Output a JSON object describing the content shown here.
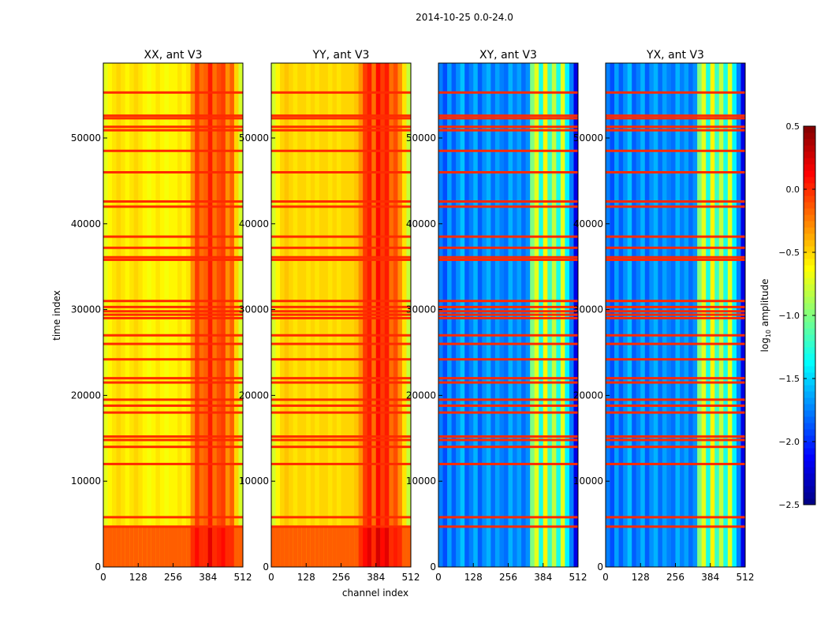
{
  "chart_data": {
    "type": "heatmap",
    "title": "2014-10-25 0.0-24.0",
    "xlabel": "channel index",
    "ylabel": "time index",
    "xlim": [
      0,
      512
    ],
    "ylim": [
      0,
      58730
    ],
    "xticks": [
      "0",
      "128",
      "256",
      "384",
      "512"
    ],
    "xtick_values": [
      0,
      128,
      256,
      384,
      512
    ],
    "yticks": [
      "0",
      "10000",
      "20000",
      "30000",
      "40000",
      "50000"
    ],
    "ytick_values": [
      0,
      10000,
      20000,
      30000,
      40000,
      50000
    ],
    "flagged_times": [
      55300,
      52600,
      52300,
      51300,
      50900,
      48500,
      46000,
      42600,
      42000,
      38500,
      37200,
      36100,
      35800,
      31000,
      30300,
      29800,
      29400,
      29000,
      27000,
      26000,
      24200,
      22000,
      21500,
      19500,
      18800,
      18000,
      15200,
      14800,
      14000,
      12000,
      5800,
      4700
    ],
    "flag_value": 0.0,
    "panels": [
      {
        "title": "XX, ant V3",
        "low_band": [
          0,
          4700
        ],
        "low_band_value": -0.15,
        "channel_profile": [
          -0.7,
          -0.6,
          -0.55,
          -0.5,
          -0.55,
          -0.6,
          -0.55,
          -0.5,
          -0.55,
          -0.6,
          -0.65,
          -0.6,
          -0.55,
          -0.6,
          -0.65,
          -0.6,
          -0.6,
          -0.55,
          -0.6,
          -0.55,
          -0.3,
          -0.05,
          -0.2,
          -0.15,
          0.05,
          -0.2,
          -0.1,
          -0.05,
          -0.3,
          -0.15,
          -0.5,
          -0.75
        ]
      },
      {
        "title": "YY, ant V3",
        "low_band": [
          0,
          4700
        ],
        "low_band_value": -0.15,
        "channel_profile": [
          -0.75,
          -0.6,
          -0.5,
          -0.45,
          -0.5,
          -0.55,
          -0.5,
          -0.5,
          -0.55,
          -0.5,
          -0.55,
          -0.5,
          -0.5,
          -0.55,
          -0.5,
          -0.55,
          -0.5,
          -0.5,
          -0.5,
          -0.45,
          -0.3,
          -0.05,
          0.05,
          -0.2,
          0.1,
          -0.05,
          0.05,
          -0.2,
          -0.1,
          -0.3,
          -0.55,
          -0.8
        ]
      },
      {
        "title": "XY, ant V3",
        "low_band": null,
        "low_band_value": null,
        "channel_profile": [
          -1.75,
          -1.9,
          -1.65,
          -1.85,
          -1.7,
          -1.55,
          -1.85,
          -1.75,
          -1.6,
          -1.85,
          -1.7,
          -1.6,
          -1.8,
          -1.65,
          -1.75,
          -1.8,
          -1.6,
          -1.75,
          -1.65,
          -1.8,
          -1.7,
          -1.0,
          -0.7,
          -1.3,
          -0.6,
          -1.2,
          -0.8,
          -1.3,
          -0.7,
          -1.4,
          -1.75,
          -2.2
        ]
      },
      {
        "title": "YX, ant V3",
        "low_band": null,
        "low_band_value": null,
        "channel_profile": [
          -1.75,
          -1.9,
          -1.65,
          -1.85,
          -1.7,
          -1.55,
          -1.85,
          -1.75,
          -1.6,
          -1.85,
          -1.7,
          -1.6,
          -1.8,
          -1.65,
          -1.75,
          -1.8,
          -1.6,
          -1.75,
          -1.65,
          -1.8,
          -1.7,
          -1.0,
          -0.7,
          -1.3,
          -0.6,
          -1.2,
          -0.8,
          -1.3,
          -0.7,
          -1.4,
          -1.75,
          -2.2
        ]
      }
    ],
    "colorbar": {
      "label": "log10 amplitude",
      "label_main": "log",
      "label_sub": "10",
      "label_rest": " amplitude",
      "range": [
        -2.5,
        0.5
      ],
      "colormap": "jet",
      "ticks": [
        "0.5",
        "0.0",
        "−0.5",
        "−1.0",
        "−1.5",
        "−2.0",
        "−2.5"
      ],
      "tick_values": [
        0.5,
        0.0,
        -0.5,
        -1.0,
        -1.5,
        -2.0,
        -2.5
      ]
    }
  }
}
